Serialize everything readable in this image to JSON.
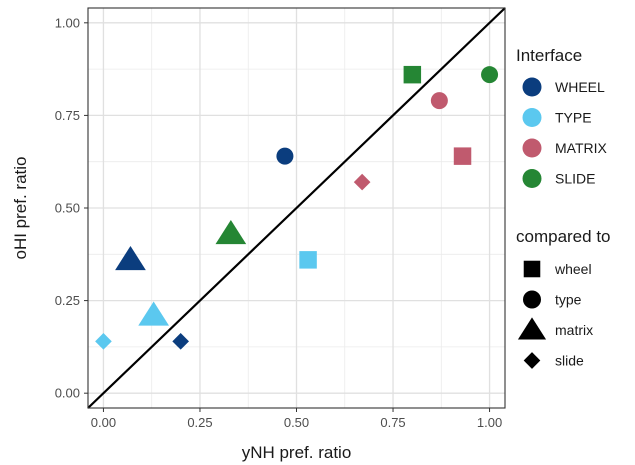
{
  "chart_data": {
    "type": "scatter",
    "xlabel": "yNH pref. ratio",
    "ylabel": "oHI pref. ratio",
    "xlim": [
      -0.04,
      1.04
    ],
    "ylim": [
      -0.04,
      1.04
    ],
    "x_ticks": [
      "0.00",
      "0.25",
      "0.50",
      "0.75",
      "1.00"
    ],
    "y_ticks": [
      "0.00",
      "0.25",
      "0.50",
      "0.75",
      "1.00"
    ],
    "tick_values": [
      0,
      0.25,
      0.5,
      0.75,
      1.0
    ],
    "grid": true,
    "reference_line": {
      "type": "identity",
      "x": [
        0,
        1
      ],
      "y": [
        0,
        1
      ],
      "color": "#000000"
    },
    "legend_placement": "right",
    "legends": {
      "color": {
        "title": "Interface",
        "entries": [
          {
            "label": "WHEEL",
            "color": "#0b3d7e"
          },
          {
            "label": "TYPE",
            "color": "#5bc8ef"
          },
          {
            "label": "MATRIX",
            "color": "#c05a6e"
          },
          {
            "label": "SLIDE",
            "color": "#258634"
          }
        ]
      },
      "shape": {
        "title": "compared to",
        "entries": [
          {
            "label": "wheel",
            "shape": "square"
          },
          {
            "label": "type",
            "shape": "circle"
          },
          {
            "label": "matrix",
            "shape": "triangle"
          },
          {
            "label": "slide",
            "shape": "diamond"
          }
        ]
      }
    },
    "points": [
      {
        "interface": "WHEEL",
        "compared_to": "type",
        "x": 0.47,
        "y": 0.64
      },
      {
        "interface": "WHEEL",
        "compared_to": "matrix",
        "x": 0.07,
        "y": 0.36
      },
      {
        "interface": "WHEEL",
        "compared_to": "slide",
        "x": 0.2,
        "y": 0.14
      },
      {
        "interface": "TYPE",
        "compared_to": "wheel",
        "x": 0.53,
        "y": 0.36
      },
      {
        "interface": "TYPE",
        "compared_to": "matrix",
        "x": 0.13,
        "y": 0.21
      },
      {
        "interface": "TYPE",
        "compared_to": "slide",
        "x": 0.0,
        "y": 0.14
      },
      {
        "interface": "MATRIX",
        "compared_to": "wheel",
        "x": 0.93,
        "y": 0.64
      },
      {
        "interface": "MATRIX",
        "compared_to": "type",
        "x": 0.87,
        "y": 0.79
      },
      {
        "interface": "MATRIX",
        "compared_to": "slide",
        "x": 0.67,
        "y": 0.57
      },
      {
        "interface": "SLIDE",
        "compared_to": "wheel",
        "x": 0.8,
        "y": 0.86
      },
      {
        "interface": "SLIDE",
        "compared_to": "type",
        "x": 1.0,
        "y": 0.86
      },
      {
        "interface": "SLIDE",
        "compared_to": "matrix",
        "x": 0.33,
        "y": 0.43
      }
    ]
  }
}
